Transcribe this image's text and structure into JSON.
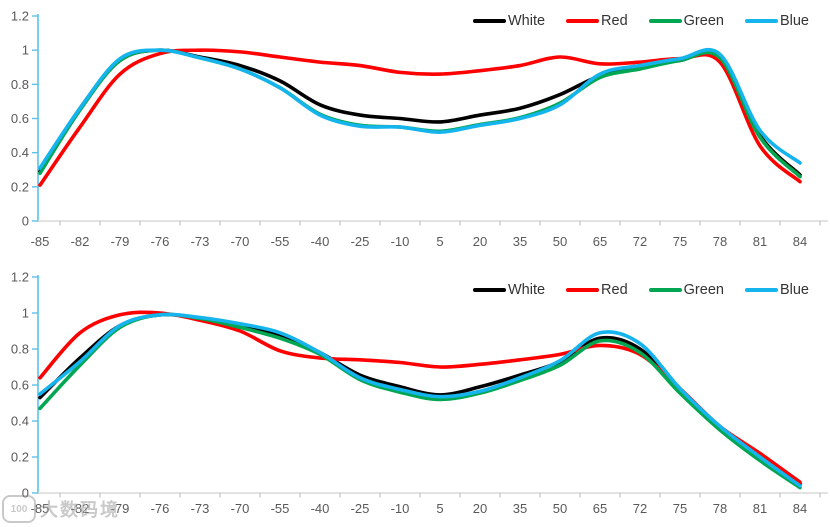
{
  "watermark": {
    "icon_text": "100",
    "text": "大数码境"
  },
  "colors": {
    "y_axis": "#5bc2ec",
    "x_axis": "#d9d9d9",
    "x_tick": "#c6c6c6",
    "axis_label": "#595959",
    "legend_text": "#333333"
  },
  "chart_data": [
    {
      "type": "line",
      "title": "",
      "xlabel": "",
      "ylabel": "",
      "ylim": [
        0,
        1.2
      ],
      "ytick_labels": [
        "0",
        "0.2",
        "0.4",
        "0.6",
        "0.8",
        "1",
        "1.2"
      ],
      "grid": false,
      "smooth": true,
      "legend_position": "top-right",
      "categories": [
        "-85",
        "-82",
        "-79",
        "-76",
        "-73",
        "-70",
        "-55",
        "-40",
        "-25",
        "-10",
        "5",
        "20",
        "35",
        "50",
        "65",
        "72",
        "75",
        "78",
        "81",
        "84"
      ],
      "series": [
        {
          "name": "White",
          "color": "#000000",
          "values": [
            0.29,
            0.66,
            0.94,
            1.0,
            0.96,
            0.91,
            0.82,
            0.68,
            0.62,
            0.6,
            0.58,
            0.62,
            0.66,
            0.74,
            0.85,
            0.9,
            0.94,
            0.96,
            0.5,
            0.27
          ]
        },
        {
          "name": "Red",
          "color": "#fe0000",
          "values": [
            0.21,
            0.55,
            0.86,
            0.98,
            1.0,
            0.99,
            0.96,
            0.93,
            0.91,
            0.87,
            0.86,
            0.88,
            0.91,
            0.96,
            0.92,
            0.93,
            0.95,
            0.93,
            0.44,
            0.23
          ]
        },
        {
          "name": "Green",
          "color": "#00a651",
          "values": [
            0.28,
            0.65,
            0.94,
            1.0,
            0.955,
            0.89,
            0.78,
            0.625,
            0.56,
            0.55,
            0.525,
            0.565,
            0.605,
            0.69,
            0.84,
            0.89,
            0.94,
            0.955,
            0.49,
            0.26
          ]
        },
        {
          "name": "Blue",
          "color": "#15b4ec",
          "values": [
            0.31,
            0.66,
            0.95,
            1.0,
            0.955,
            0.89,
            0.78,
            0.62,
            0.555,
            0.55,
            0.52,
            0.56,
            0.6,
            0.68,
            0.86,
            0.91,
            0.95,
            0.975,
            0.53,
            0.34
          ]
        }
      ]
    },
    {
      "type": "line",
      "title": "",
      "xlabel": "",
      "ylabel": "",
      "ylim": [
        0,
        1.2
      ],
      "ytick_labels": [
        "0",
        "0.2",
        "0.4",
        "0.6",
        "0.8",
        "1",
        "1.2"
      ],
      "grid": false,
      "smooth": true,
      "legend_position": "top-right",
      "categories": [
        "-85",
        "-82",
        "-79",
        "-76",
        "-73",
        "-70",
        "-55",
        "-40",
        "-25",
        "-10",
        "5",
        "20",
        "35",
        "50",
        "65",
        "72",
        "75",
        "78",
        "81",
        "84"
      ],
      "series": [
        {
          "name": "White",
          "color": "#000000",
          "values": [
            0.53,
            0.75,
            0.93,
            0.99,
            0.97,
            0.93,
            0.88,
            0.78,
            0.655,
            0.59,
            0.545,
            0.59,
            0.655,
            0.73,
            0.86,
            0.8,
            0.57,
            0.36,
            0.2,
            0.05
          ]
        },
        {
          "name": "Red",
          "color": "#fe0000",
          "values": [
            0.64,
            0.89,
            0.99,
            1.0,
            0.96,
            0.9,
            0.79,
            0.75,
            0.74,
            0.725,
            0.7,
            0.715,
            0.74,
            0.77,
            0.82,
            0.77,
            0.58,
            0.37,
            0.22,
            0.06
          ]
        },
        {
          "name": "Green",
          "color": "#00a651",
          "values": [
            0.47,
            0.71,
            0.92,
            0.99,
            0.97,
            0.92,
            0.86,
            0.77,
            0.63,
            0.56,
            0.52,
            0.555,
            0.625,
            0.71,
            0.845,
            0.78,
            0.555,
            0.35,
            0.18,
            0.03
          ]
        },
        {
          "name": "Blue",
          "color": "#15b4ec",
          "values": [
            0.55,
            0.73,
            0.93,
            0.99,
            0.975,
            0.94,
            0.89,
            0.78,
            0.64,
            0.575,
            0.535,
            0.565,
            0.64,
            0.735,
            0.89,
            0.83,
            0.58,
            0.37,
            0.2,
            0.04
          ]
        }
      ]
    }
  ]
}
